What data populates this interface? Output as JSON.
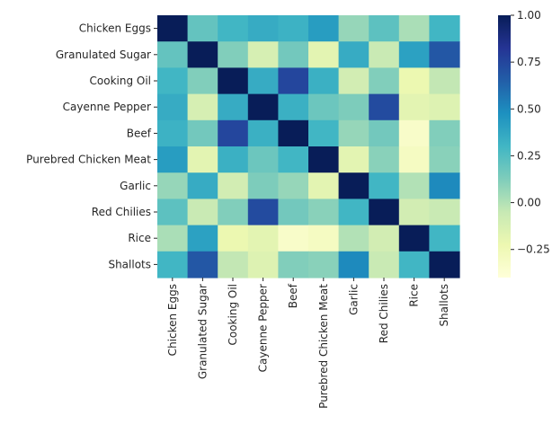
{
  "chart_data": {
    "type": "heatmap",
    "title": "",
    "xlabel": "",
    "ylabel": "",
    "rows": [
      "Chicken Eggs",
      "Granulated Sugar",
      "Cooking Oil",
      "Cayenne Pepper",
      "Beef",
      "Purebred Chicken Meat",
      "Garlic",
      "Red Chilies",
      "Rice",
      "Shallots"
    ],
    "columns": [
      "Chicken Eggs",
      "Granulated Sugar",
      "Cooking Oil",
      "Cayenne Pepper",
      "Beef",
      "Purebred Chicken Meat",
      "Garlic",
      "Red Chilies",
      "Rice",
      "Shallots"
    ],
    "values": [
      [
        1.0,
        0.2,
        0.3,
        0.35,
        0.32,
        0.42,
        0.07,
        0.22,
        0.02,
        0.3
      ],
      [
        0.2,
        1.0,
        0.12,
        -0.12,
        0.16,
        -0.18,
        0.35,
        -0.06,
        0.4,
        0.68
      ],
      [
        0.3,
        0.12,
        1.0,
        0.35,
        0.75,
        0.33,
        -0.1,
        0.12,
        -0.22,
        -0.04
      ],
      [
        0.35,
        -0.12,
        0.35,
        1.0,
        0.33,
        0.18,
        0.13,
        0.73,
        -0.18,
        -0.15
      ],
      [
        0.32,
        0.16,
        0.75,
        0.33,
        1.0,
        0.3,
        0.07,
        0.16,
        -0.33,
        0.12
      ],
      [
        0.42,
        -0.18,
        0.33,
        0.18,
        0.3,
        1.0,
        -0.18,
        0.1,
        -0.3,
        0.1
      ],
      [
        0.07,
        0.35,
        -0.1,
        0.13,
        0.07,
        -0.18,
        1.0,
        0.3,
        0.0,
        0.5
      ],
      [
        0.22,
        -0.06,
        0.12,
        0.73,
        0.16,
        0.1,
        0.3,
        1.0,
        -0.1,
        -0.06
      ],
      [
        0.02,
        0.4,
        -0.22,
        -0.18,
        -0.33,
        -0.3,
        0.0,
        -0.1,
        1.0,
        0.3
      ],
      [
        0.3,
        0.68,
        -0.04,
        -0.15,
        0.12,
        0.1,
        0.5,
        -0.06,
        0.3,
        1.0
      ]
    ],
    "colorbar": {
      "colormap": "YlGnBu",
      "range": [
        -0.4,
        1.0
      ],
      "ticks": [
        1.0,
        0.75,
        0.5,
        0.25,
        0.0,
        -0.25
      ],
      "tick_labels": [
        "1.00",
        "0.75",
        "0.50",
        "0.25",
        "0.00",
        "−0.25"
      ]
    }
  }
}
